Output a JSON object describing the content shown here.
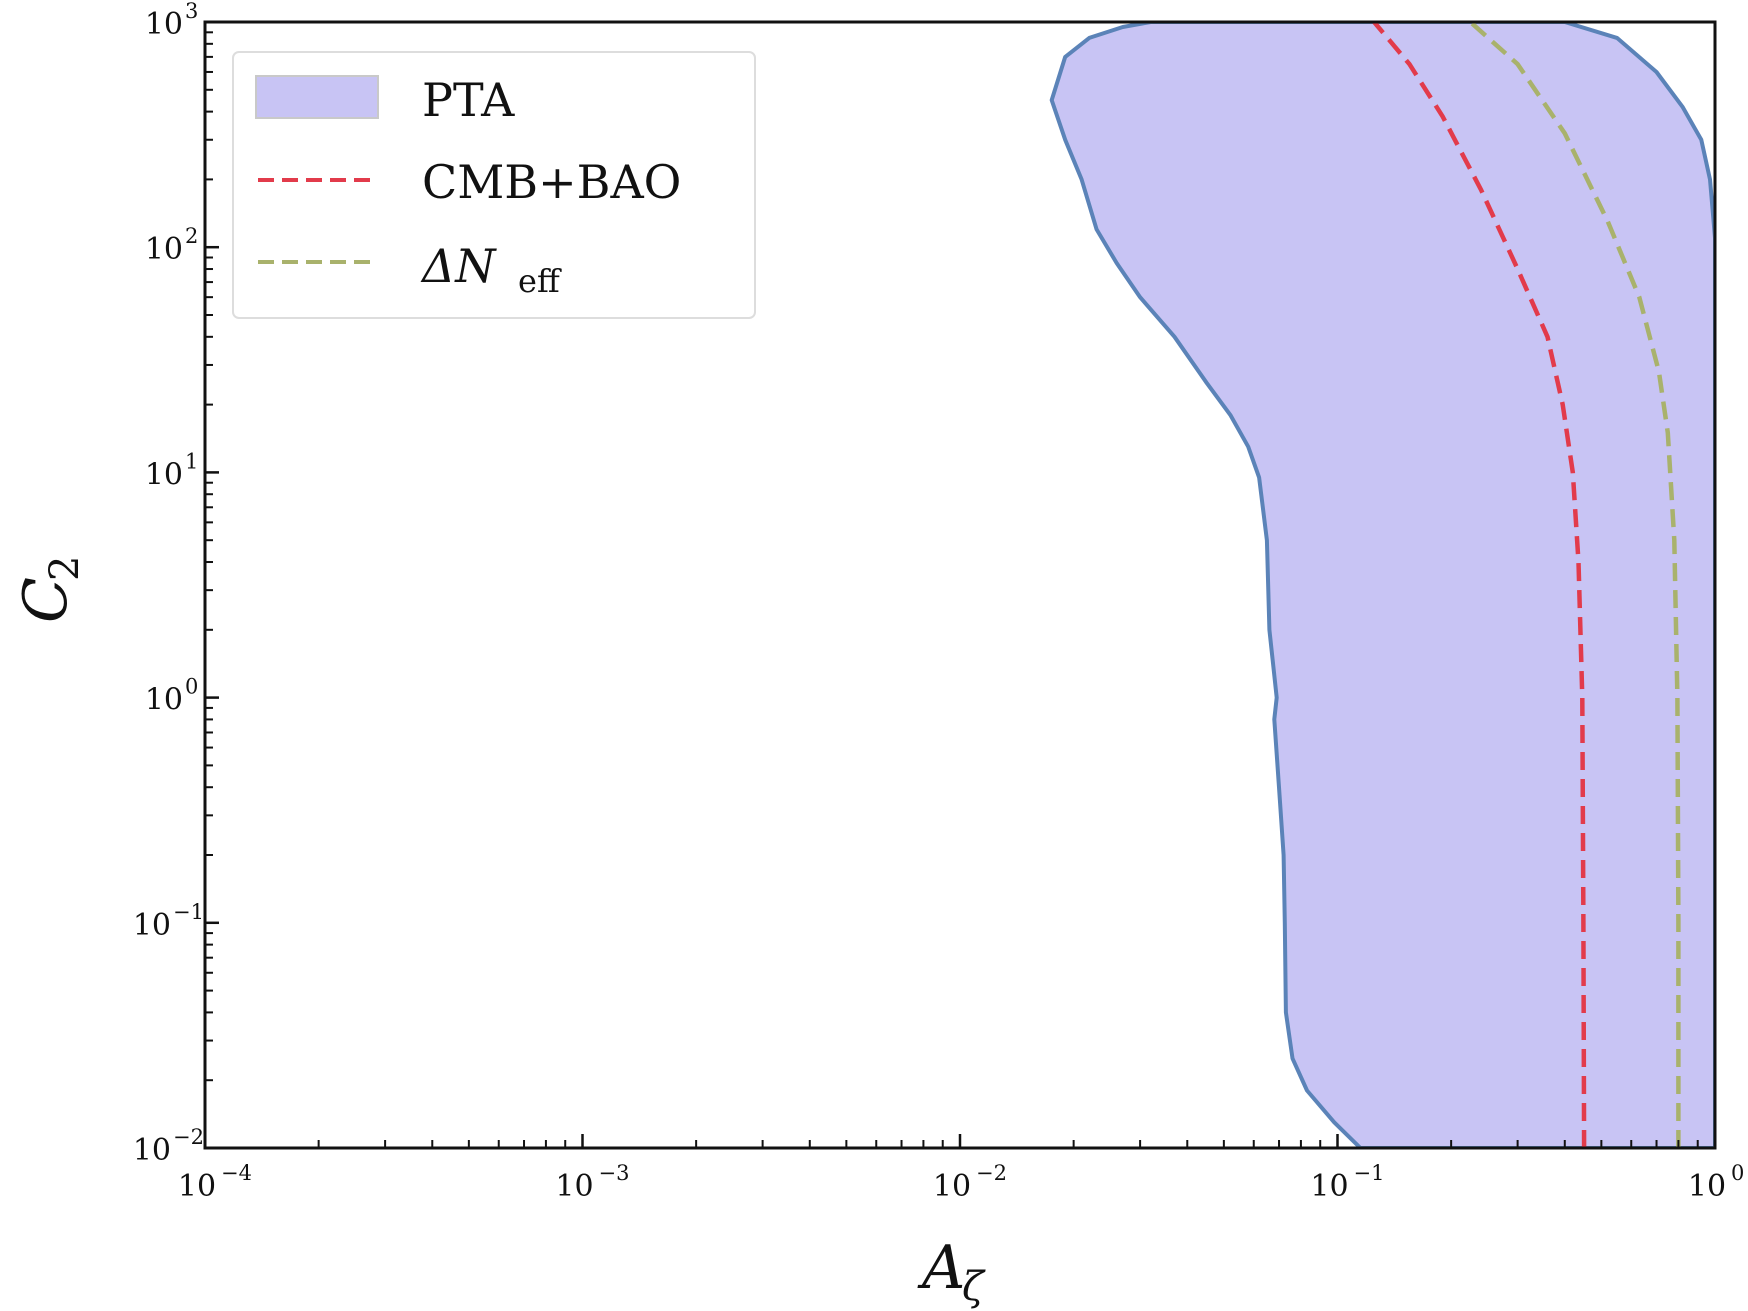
{
  "chart_data": {
    "type": "area",
    "x_scale": "log",
    "y_scale": "log",
    "xlim": [
      0.0001,
      1
    ],
    "ylim": [
      0.01,
      1000
    ],
    "xlabel": {
      "main": "A",
      "sub": "ζ"
    },
    "ylabel": {
      "main": "C",
      "sub": "2"
    },
    "x_ticks": [
      {
        "base": "10",
        "exp": "−4",
        "value": 0.0001
      },
      {
        "base": "10",
        "exp": "−3",
        "value": 0.001
      },
      {
        "base": "10",
        "exp": "−2",
        "value": 0.01
      },
      {
        "base": "10",
        "exp": "−1",
        "value": 0.1
      },
      {
        "base": "10",
        "exp": "0",
        "value": 1
      }
    ],
    "y_ticks": [
      {
        "base": "10",
        "exp": "−2",
        "value": 0.01
      },
      {
        "base": "10",
        "exp": "−1",
        "value": 0.1
      },
      {
        "base": "10",
        "exp": "0",
        "value": 1
      },
      {
        "base": "10",
        "exp": "1",
        "value": 10
      },
      {
        "base": "10",
        "exp": "2",
        "value": 100
      },
      {
        "base": "10",
        "exp": "3",
        "value": 1000
      }
    ],
    "grid": false,
    "legend_position": "top-left",
    "legend": [
      {
        "label": "PTA",
        "kind": "patch"
      },
      {
        "label": "CMB+BAO",
        "kind": "dashed"
      },
      {
        "label_main": "ΔN",
        "label_sub": "eff",
        "kind": "dashed"
      }
    ],
    "series": [
      {
        "name": "PTA",
        "kind": "region",
        "fill_color": "#c8c4f4",
        "edge_color": "#5b83b8",
        "left_boundary": [
          {
            "x": 0.115,
            "y": 0.01
          },
          {
            "x": 0.098,
            "y": 0.013
          },
          {
            "x": 0.083,
            "y": 0.018
          },
          {
            "x": 0.076,
            "y": 0.025
          },
          {
            "x": 0.073,
            "y": 0.04
          },
          {
            "x": 0.0725,
            "y": 0.1
          },
          {
            "x": 0.072,
            "y": 0.2
          },
          {
            "x": 0.07,
            "y": 0.4
          },
          {
            "x": 0.068,
            "y": 0.8
          },
          {
            "x": 0.069,
            "y": 1
          },
          {
            "x": 0.066,
            "y": 2
          },
          {
            "x": 0.065,
            "y": 5
          },
          {
            "x": 0.062,
            "y": 9.5
          },
          {
            "x": 0.058,
            "y": 13
          },
          {
            "x": 0.052,
            "y": 18
          },
          {
            "x": 0.045,
            "y": 25
          },
          {
            "x": 0.037,
            "y": 40
          },
          {
            "x": 0.03,
            "y": 60
          },
          {
            "x": 0.026,
            "y": 85
          },
          {
            "x": 0.023,
            "y": 120
          },
          {
            "x": 0.021,
            "y": 200
          },
          {
            "x": 0.019,
            "y": 300
          },
          {
            "x": 0.0175,
            "y": 450
          },
          {
            "x": 0.019,
            "y": 700
          },
          {
            "x": 0.022,
            "y": 850
          },
          {
            "x": 0.027,
            "y": 950
          },
          {
            "x": 0.032,
            "y": 1000
          }
        ],
        "right_boundary": [
          {
            "x": 0.4,
            "y": 1000
          },
          {
            "x": 0.55,
            "y": 850
          },
          {
            "x": 0.7,
            "y": 600
          },
          {
            "x": 0.82,
            "y": 420
          },
          {
            "x": 0.92,
            "y": 300
          },
          {
            "x": 0.97,
            "y": 200
          },
          {
            "x": 1,
            "y": 110
          }
        ]
      },
      {
        "name": "CMB+BAO",
        "kind": "dashed",
        "color": "#e23b4b",
        "points": [
          {
            "x": 0.45,
            "y": 0.01
          },
          {
            "x": 0.448,
            "y": 0.1
          },
          {
            "x": 0.445,
            "y": 1
          },
          {
            "x": 0.435,
            "y": 4
          },
          {
            "x": 0.42,
            "y": 10
          },
          {
            "x": 0.395,
            "y": 20
          },
          {
            "x": 0.36,
            "y": 40
          },
          {
            "x": 0.3,
            "y": 80
          },
          {
            "x": 0.24,
            "y": 180
          },
          {
            "x": 0.19,
            "y": 380
          },
          {
            "x": 0.155,
            "y": 650
          },
          {
            "x": 0.125,
            "y": 1000
          }
        ]
      },
      {
        "name": "ΔN_eff",
        "kind": "dashed",
        "color": "#a9b26c",
        "points": [
          {
            "x": 0.8,
            "y": 0.01
          },
          {
            "x": 0.8,
            "y": 0.1
          },
          {
            "x": 0.795,
            "y": 1
          },
          {
            "x": 0.78,
            "y": 5
          },
          {
            "x": 0.75,
            "y": 15
          },
          {
            "x": 0.71,
            "y": 28
          },
          {
            "x": 0.63,
            "y": 60
          },
          {
            "x": 0.52,
            "y": 130
          },
          {
            "x": 0.4,
            "y": 320
          },
          {
            "x": 0.3,
            "y": 650
          },
          {
            "x": 0.225,
            "y": 1000
          }
        ]
      }
    ]
  }
}
